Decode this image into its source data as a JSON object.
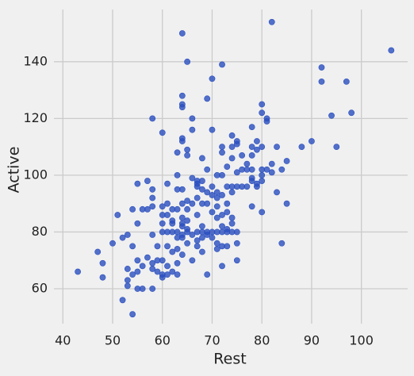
{
  "chart_data": {
    "type": "scatter",
    "xlabel": "Rest",
    "ylabel": "Active",
    "x": [
      43,
      47,
      48,
      48,
      50,
      51,
      52,
      52,
      53,
      53,
      53,
      53,
      54,
      54,
      54,
      54,
      55,
      55,
      55,
      55,
      55,
      56,
      56,
      56,
      57,
      57,
      57,
      58,
      58,
      58,
      58,
      58,
      58,
      58,
      58,
      59,
      59,
      59,
      60,
      60,
      60,
      60,
      60,
      60,
      60,
      60,
      61,
      61,
      61,
      61,
      61,
      61,
      61,
      62,
      62,
      62,
      62,
      62,
      62,
      63,
      63,
      63,
      63,
      63,
      63,
      63,
      63,
      63,
      64,
      64,
      64,
      64,
      64,
      64,
      64,
      64,
      64,
      64,
      64,
      64,
      64,
      64,
      65,
      65,
      65,
      65,
      65,
      65,
      65,
      65,
      65,
      66,
      66,
      66,
      66,
      66,
      66,
      67,
      67,
      67,
      67,
      67,
      67,
      67,
      67,
      68,
      68,
      68,
      68,
      68,
      68,
      68,
      68,
      69,
      69,
      69,
      69,
      69,
      69,
      69,
      70,
      70,
      70,
      70,
      70,
      70,
      70,
      71,
      71,
      71,
      71,
      71,
      71,
      71,
      71,
      72,
      72,
      72,
      72,
      72,
      72,
      72,
      72,
      72,
      72,
      73,
      73,
      73,
      73,
      73,
      73,
      73,
      74,
      74,
      74,
      74,
      74,
      74,
      74,
      74,
      75,
      75,
      75,
      75,
      75,
      75,
      75,
      76,
      76,
      76,
      77,
      77,
      77,
      78,
      78,
      78,
      78,
      78,
      78,
      78,
      79,
      79,
      79,
      79,
      80,
      80,
      80,
      80,
      80,
      80,
      80,
      81,
      81,
      81,
      82,
      82,
      82,
      83,
      83,
      84,
      84,
      85,
      85,
      88,
      90,
      92,
      92,
      94,
      95,
      97,
      98,
      106
    ],
    "values": [
      66,
      73,
      69,
      64,
      76,
      86,
      78,
      56,
      63,
      61,
      67,
      79,
      51,
      65,
      75,
      88,
      60,
      66,
      70,
      83,
      97,
      60,
      68,
      88,
      71,
      88,
      98,
      120,
      95,
      92,
      89,
      79,
      69,
      67,
      60,
      70,
      75,
      66,
      89,
      86,
      83,
      80,
      70,
      64,
      65,
      115,
      97,
      90,
      86,
      80,
      75,
      65,
      68,
      80,
      83,
      88,
      84,
      73,
      66,
      108,
      100,
      95,
      88,
      80,
      78,
      74,
      69,
      65,
      150,
      128,
      125,
      124,
      113,
      112,
      95,
      90,
      85,
      83,
      82,
      79,
      78,
      72,
      140,
      109,
      107,
      91,
      88,
      84,
      81,
      80,
      76,
      120,
      116,
      99,
      90,
      79,
      70,
      98,
      97,
      96,
      92,
      86,
      80,
      77,
      75,
      106,
      98,
      95,
      90,
      82,
      80,
      78,
      73,
      127,
      102,
      94,
      90,
      80,
      79,
      65,
      134,
      116,
      96,
      93,
      87,
      80,
      78,
      100,
      94,
      92,
      89,
      85,
      80,
      76,
      74,
      139,
      110,
      108,
      100,
      93,
      86,
      82,
      80,
      75,
      68,
      103,
      96,
      90,
      87,
      81,
      80,
      75,
      114,
      110,
      106,
      96,
      94,
      85,
      83,
      80,
      112,
      111,
      101,
      96,
      80,
      76,
      70,
      107,
      102,
      96,
      104,
      102,
      96,
      117,
      110,
      107,
      102,
      99,
      98,
      89,
      112,
      109,
      97,
      96,
      125,
      122,
      110,
      102,
      100,
      98,
      87,
      120,
      119,
      102,
      154,
      104,
      101,
      110,
      94,
      102,
      76,
      105,
      90,
      110,
      112,
      138,
      133,
      121,
      110,
      133,
      122,
      144
    ],
    "color": "#2a4fbf",
    "xlim": [
      38.2,
      109.3
    ],
    "ylim": [
      47.7,
      158.4
    ],
    "xticks": [
      40,
      50,
      60,
      70,
      80,
      90,
      100
    ],
    "yticks": [
      60,
      80,
      100,
      120,
      140
    ],
    "grid": true
  }
}
